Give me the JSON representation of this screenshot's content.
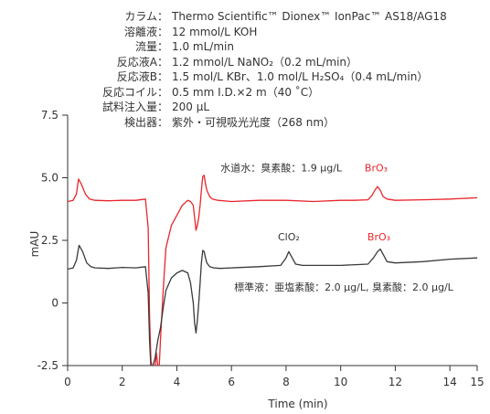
{
  "conditions": [
    {
      "label": "カラム：",
      "value": "Thermo Scientific™ Dionex™ IonPac™ AS18/AG18"
    },
    {
      "label": "溶離液：",
      "value": "12 mmol/L KOH"
    },
    {
      "label": "流量：",
      "value": "1.0 mL/min"
    },
    {
      "label": "反応液A：",
      "value": "1.2 mmol/L NaNO₂（0.2 mL/min）"
    },
    {
      "label": "反応液B：",
      "value": "1.5 mol/L KBr、1.0 mol/L H₂SO₄（0.4 mL/min）"
    },
    {
      "label": "反応コイル：",
      "value": "0.5 mm I.D.×2 m（40 ˚C）"
    },
    {
      "label": "試料注入量：",
      "value": "200 μL"
    },
    {
      "label": "検出器：",
      "value": "紫外・可視吸光光度（268 nm）"
    }
  ],
  "chart_data": {
    "type": "line",
    "xlabel": "Time (min)",
    "ylabel": "mAU",
    "xlim": [
      0,
      15
    ],
    "ylim": [
      -2.5,
      7.5
    ],
    "xticks": [
      0,
      2,
      4,
      6,
      8,
      10,
      12,
      14
    ],
    "xtick_labels": [
      "0",
      "2",
      "4",
      "6",
      "8",
      "10",
      "12",
      "14"
    ],
    "last_tick_label": "15",
    "yticks": [
      -2.5,
      0,
      2.5,
      5.0,
      7.5
    ],
    "ytick_labels": [
      "-2.5",
      "0",
      "2.5",
      "5.0",
      "7.5"
    ],
    "grid": false,
    "colors": {
      "tap_water": "#e8262c",
      "standard": "#3a3a3a",
      "axis": "#333333"
    },
    "series": [
      {
        "sample_label": "水道水：臭素酸：1.9 μg/L",
        "color": "#e8262c",
        "x": [
          0.0,
          0.2,
          0.32,
          0.4,
          0.5,
          0.65,
          0.8,
          1.0,
          1.5,
          2.0,
          2.5,
          2.85,
          2.95,
          3.0,
          3.05,
          3.1,
          3.2,
          3.25,
          3.3,
          3.35,
          3.4,
          3.5,
          3.6,
          3.8,
          4.0,
          4.2,
          4.4,
          4.5,
          4.6,
          4.65,
          4.7,
          4.75,
          4.8,
          4.85,
          4.9,
          4.95,
          5.0,
          5.05,
          5.1,
          5.2,
          5.3,
          5.5,
          6.0,
          7.0,
          8.0,
          9.0,
          10.0,
          10.5,
          11.0,
          11.15,
          11.25,
          11.35,
          11.45,
          11.55,
          11.7,
          12.0,
          13.0,
          14.0,
          15.0
        ],
        "y": [
          4.05,
          4.1,
          4.35,
          4.95,
          4.75,
          4.35,
          4.15,
          4.1,
          4.08,
          4.1,
          4.1,
          4.15,
          3.0,
          -0.5,
          -2.3,
          -2.6,
          -2.6,
          -2.0,
          -2.5,
          -2.6,
          -1.5,
          0.5,
          2.2,
          3.1,
          3.5,
          3.9,
          4.1,
          4.05,
          3.9,
          3.4,
          2.9,
          3.1,
          3.4,
          3.9,
          4.5,
          5.05,
          5.1,
          4.75,
          4.5,
          4.25,
          4.15,
          4.1,
          4.05,
          4.1,
          4.1,
          4.05,
          4.1,
          4.1,
          4.12,
          4.3,
          4.5,
          4.65,
          4.5,
          4.25,
          4.15,
          4.1,
          4.12,
          4.15,
          4.2
        ]
      },
      {
        "sample_label": "標準液：亜塩素酸：2.0 μg/L, 臭素酸：2.0 μg/L",
        "color": "#3a3a3a",
        "x": [
          0.0,
          0.2,
          0.32,
          0.42,
          0.55,
          0.7,
          0.85,
          1.0,
          1.5,
          2.0,
          2.5,
          2.85,
          2.95,
          3.0,
          3.05,
          3.1,
          3.2,
          3.3,
          3.4,
          3.5,
          3.6,
          3.8,
          4.0,
          4.2,
          4.4,
          4.5,
          4.6,
          4.65,
          4.7,
          4.75,
          4.8,
          4.85,
          4.9,
          4.95,
          5.0,
          5.05,
          5.1,
          5.2,
          5.35,
          5.6,
          6.0,
          7.0,
          7.8,
          8.0,
          8.1,
          8.2,
          8.35,
          8.6,
          9.0,
          10.0,
          11.0,
          11.2,
          11.35,
          11.45,
          11.55,
          11.7,
          12.0,
          13.0,
          14.0,
          15.0
        ],
        "y": [
          1.35,
          1.4,
          1.7,
          2.3,
          2.05,
          1.6,
          1.45,
          1.4,
          1.38,
          1.42,
          1.4,
          1.45,
          0.4,
          -1.5,
          -2.6,
          -2.6,
          -2.2,
          -1.5,
          -1.0,
          -0.2,
          0.5,
          1.0,
          1.2,
          1.3,
          1.2,
          0.8,
          0.0,
          -0.8,
          -1.2,
          -0.7,
          0.0,
          0.8,
          1.6,
          2.1,
          2.05,
          1.8,
          1.6,
          1.45,
          1.4,
          1.38,
          1.4,
          1.45,
          1.5,
          1.8,
          2.05,
          1.85,
          1.55,
          1.5,
          1.5,
          1.5,
          1.55,
          1.8,
          2.05,
          2.15,
          1.95,
          1.65,
          1.6,
          1.65,
          1.75,
          1.8
        ]
      }
    ],
    "annotations": [
      {
        "text": "水道水：臭素酸：1.9 μg/L",
        "x": 5.6,
        "y": 5.25,
        "anchor": "start",
        "color": "#333333"
      },
      {
        "text": "BrO₃",
        "x": 11.3,
        "y": 5.25,
        "anchor": "middle",
        "color": "#e8262c"
      },
      {
        "text": "ClO₂",
        "x": 8.1,
        "y": 2.5,
        "anchor": "middle",
        "color": "#333333"
      },
      {
        "text": "BrO₃",
        "x": 11.4,
        "y": 2.5,
        "anchor": "middle",
        "color": "#e8262c"
      },
      {
        "text": "標準液：亜塩素酸：2.0 μg/L, 臭素酸：2.0 μg/L",
        "x": 6.1,
        "y": 0.5,
        "anchor": "start",
        "color": "#333333"
      }
    ]
  }
}
